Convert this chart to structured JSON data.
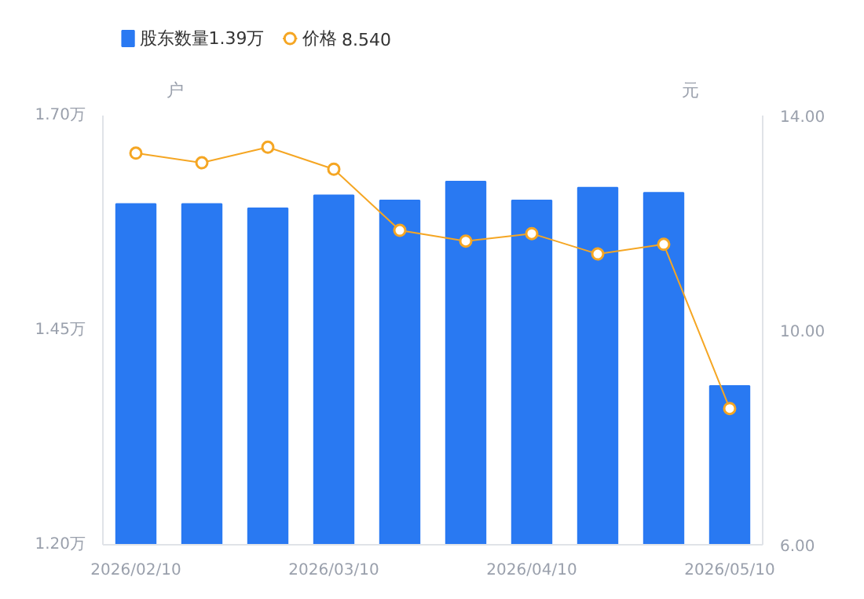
{
  "chart_data": {
    "type": "bar",
    "categories": [
      "2026/02/10",
      null,
      null,
      "2026/03/10",
      null,
      null,
      "2026/04/10",
      null,
      null,
      "2026/05/10"
    ],
    "series": [
      {
        "name": "股东数量",
        "color": "#2979f2",
        "values": [
          1.597,
          1.597,
          1.592,
          1.607,
          1.601,
          1.623,
          1.601,
          1.616,
          1.61,
          1.385
        ]
      },
      {
        "name": "价格",
        "type": "line",
        "axis": "y2",
        "color": "#f5a623",
        "marker": "circle",
        "values": [
          13.3,
          13.12,
          13.41,
          13.0,
          11.86,
          11.66,
          11.8,
          11.42,
          11.6,
          8.54
        ]
      }
    ],
    "ylabel": "户",
    "y2label": "元",
    "ylim": [
      1.2,
      1.7
    ],
    "yticks": [
      {
        "value": 1.2,
        "label": "1.20万"
      },
      {
        "value": 1.45,
        "label": "1.45万"
      },
      {
        "value": 1.7,
        "label": "1.70万"
      }
    ],
    "y2lim": [
      6,
      14
    ],
    "y2ticks": [
      {
        "value": 6,
        "label": "6.00"
      },
      {
        "value": 10,
        "label": "10.00"
      },
      {
        "value": 14,
        "label": "14.00"
      }
    ],
    "annotations": [
      "1.39万",
      "8.540"
    ],
    "legend": "top left",
    "grid": false
  }
}
